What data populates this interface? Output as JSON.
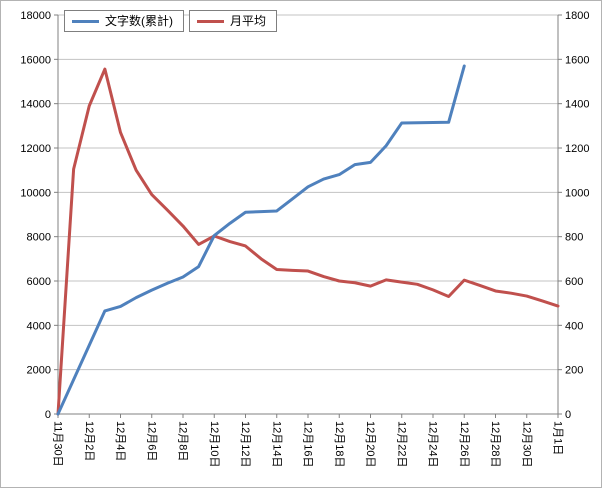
{
  "figure": {
    "background": "#ffffff",
    "border_color": "#b3b3b3"
  },
  "chart_data": {
    "type": "line",
    "title": "",
    "legend_position": "top-left",
    "grid": true,
    "colors": {
      "grid": "#c3c3c3",
      "axis": "#808080",
      "text": "#000000"
    },
    "categories": [
      "11月30日",
      "12月1日",
      "12月2日",
      "12月3日",
      "12月4日",
      "12月5日",
      "12月6日",
      "12月7日",
      "12月8日",
      "12月9日",
      "12月10日",
      "12月11日",
      "12月12日",
      "12月13日",
      "12月14日",
      "12月15日",
      "12月16日",
      "12月17日",
      "12月18日",
      "12月19日",
      "12月20日",
      "12月21日",
      "12月22日",
      "12月23日",
      "12月24日",
      "12月25日",
      "12月26日",
      "12月27日",
      "12月28日",
      "12月29日",
      "12月30日",
      "12月31日",
      "1月1日"
    ],
    "x_tick_every": 2,
    "x_tick_labels": [
      "11月30日",
      "12月2日",
      "12月4日",
      "12月6日",
      "12月8日",
      "12月10日",
      "12月12日",
      "12月14日",
      "12月16日",
      "12月18日",
      "12月20日",
      "12月22日",
      "12月24日",
      "12月26日",
      "12月28日",
      "12月30日",
      "1月1日"
    ],
    "axes": {
      "left": {
        "min": 0,
        "max": 18000,
        "step": 2000,
        "ticks": [
          0,
          2000,
          4000,
          6000,
          8000,
          10000,
          12000,
          14000,
          16000,
          18000
        ]
      },
      "right": {
        "min": 0,
        "max": 1800,
        "step": 200,
        "ticks": [
          0,
          200,
          400,
          600,
          800,
          1000,
          1200,
          1400,
          1600,
          1800
        ]
      }
    },
    "series": [
      {
        "name": "文字数(累計)",
        "color": "#4f81bd",
        "axis": "left",
        "values": [
          0,
          1550,
          3100,
          4650,
          4850,
          5250,
          5590,
          5900,
          6180,
          6650,
          8050,
          8600,
          9100,
          9130,
          9160,
          9700,
          10250,
          10600,
          10800,
          11250,
          11350,
          12100,
          13130,
          13140,
          13150,
          13160,
          15700
        ]
      },
      {
        "name": "月平均",
        "color": "#c0504d",
        "axis": "right",
        "values": [
          0,
          1105,
          1390,
          1556,
          1270,
          1100,
          990,
          920,
          848,
          765,
          803,
          778,
          758,
          700,
          652,
          648,
          645,
          620,
          600,
          592,
          577,
          605,
          595,
          585,
          560,
          530,
          604,
          580,
          555,
          545,
          532,
          510,
          487
        ]
      }
    ]
  }
}
